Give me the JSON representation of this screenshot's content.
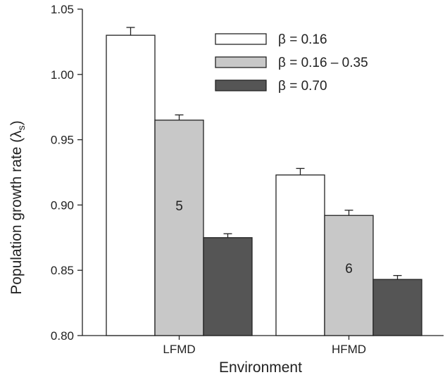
{
  "chart_data": {
    "type": "bar",
    "xlabel": "Environment",
    "ylabel": "Population growth rate (λ",
    "ylabel_sub": "s",
    "ylabel_close": ")",
    "categories": [
      "LFMD",
      "HFMD"
    ],
    "series": [
      {
        "name": "β = 0.16",
        "values": [
          1.03,
          0.923
        ],
        "errors": [
          0.006,
          0.005
        ],
        "color": "#ffffff"
      },
      {
        "name": "β = 0.16 – 0.35",
        "values": [
          0.965,
          0.892
        ],
        "errors": [
          0.004,
          0.004
        ],
        "color": "#c8c8c8"
      },
      {
        "name": "β = 0.70",
        "values": [
          0.875,
          0.843
        ],
        "errors": [
          0.003,
          0.003
        ],
        "color": "#555555"
      }
    ],
    "ylim": [
      0.8,
      1.05
    ],
    "yticks": [
      "0.80",
      "0.85",
      "0.90",
      "0.95",
      "1.00",
      "1.05"
    ],
    "annotations": [
      {
        "text": "5",
        "category": "LFMD",
        "y": 0.896
      },
      {
        "text": "6",
        "category": "HFMD",
        "y": 0.848
      }
    ],
    "legend_position": "top-right",
    "grid": false
  }
}
